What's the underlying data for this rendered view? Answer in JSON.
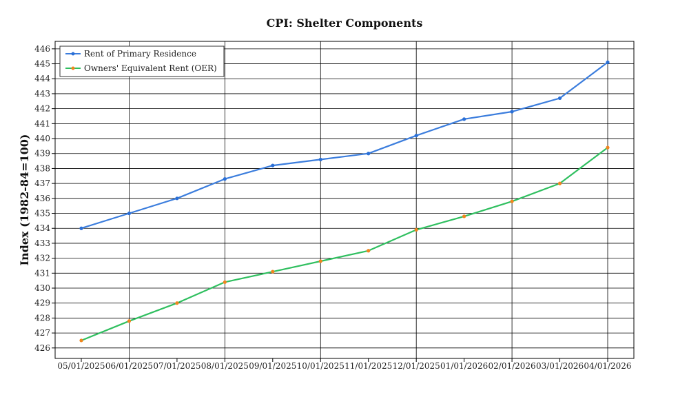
{
  "chart_data": {
    "type": "line",
    "title": "CPI: Shelter Components",
    "xlabel": "",
    "ylabel": "Index (1982-84=100)",
    "categories": [
      "05/01/2025",
      "06/01/2025",
      "07/01/2025",
      "08/01/2025",
      "09/01/2025",
      "10/01/2025",
      "11/01/2025",
      "12/01/2025",
      "01/01/2026",
      "02/01/2026",
      "03/01/2026",
      "04/01/2026"
    ],
    "series": [
      {
        "name": "Rent of Primary Residence",
        "color": "#3b7ddd",
        "marker_color": "#2a6fd6",
        "values": [
          434.0,
          435.0,
          436.0,
          437.3,
          438.2,
          438.6,
          439.0,
          440.2,
          441.3,
          441.8,
          442.7,
          445.1
        ]
      },
      {
        "name": "Owners' Equivalent Rent (OER)",
        "color": "#2fbf5f",
        "marker_color": "#f0851e",
        "values": [
          426.5,
          427.8,
          429.0,
          430.4,
          431.1,
          431.8,
          432.5,
          433.9,
          434.8,
          435.8,
          437.0,
          439.4
        ]
      }
    ],
    "ylim": [
      425.3,
      446.5
    ],
    "yticks": [
      426,
      427,
      428,
      429,
      430,
      431,
      432,
      433,
      434,
      435,
      436,
      437,
      438,
      439,
      440,
      441,
      442,
      443,
      444,
      445,
      446
    ],
    "x_grid_categories": [
      "06/01/2025",
      "08/01/2025",
      "10/01/2025",
      "12/01/2025",
      "02/01/2026",
      "04/01/2026"
    ],
    "grid": true,
    "legend_position": "top-left"
  }
}
